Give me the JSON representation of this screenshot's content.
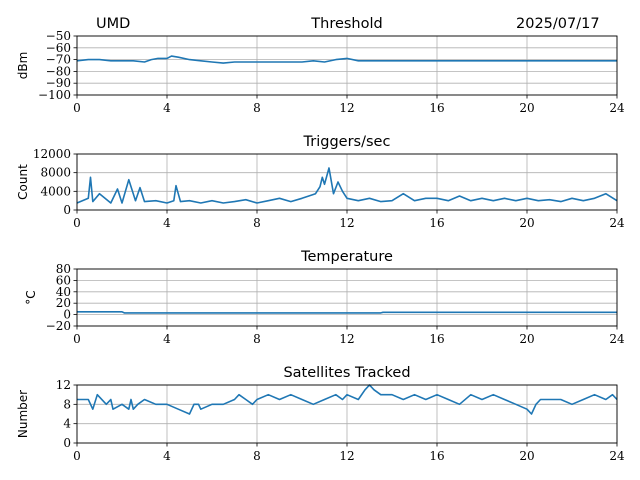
{
  "header": {
    "station": "UMD",
    "date": "2025/07/17"
  },
  "colors": {
    "line": "#1f77b4",
    "grid": "#b0b0b0"
  },
  "chart_data": [
    {
      "type": "line",
      "title": "Threshold",
      "xlabel": "",
      "ylabel": "dBm",
      "xlim": [
        0,
        24
      ],
      "ylim": [
        -100,
        -50
      ],
      "xticks": [
        "0",
        "4",
        "8",
        "12",
        "16",
        "20",
        "24"
      ],
      "yticks": [
        "−100",
        "−90",
        "−80",
        "−70",
        "−60",
        "−50"
      ],
      "grid": true,
      "series": [
        {
          "x": [
            0,
            0.5,
            1,
            1.5,
            2,
            2.5,
            3,
            3.3,
            3.6,
            4,
            4.2,
            4.5,
            5,
            5.5,
            6,
            6.5,
            7,
            7.5,
            8,
            9,
            10,
            10.5,
            11,
            11.5,
            12,
            12.5,
            13,
            14,
            16,
            18,
            20,
            22,
            24
          ],
          "y": [
            -71,
            -70,
            -70,
            -71,
            -71,
            -71,
            -72,
            -70,
            -69,
            -69,
            -67,
            -68,
            -70,
            -71,
            -72,
            -73,
            -72,
            -72,
            -72,
            -72,
            -72,
            -71,
            -72,
            -70,
            -69,
            -71,
            -71,
            -71,
            -71,
            -71,
            -71,
            -71,
            -71
          ]
        }
      ]
    },
    {
      "type": "line",
      "title": "Triggers/sec",
      "xlabel": "",
      "ylabel": "Count",
      "xlim": [
        0,
        24
      ],
      "ylim": [
        0,
        12000
      ],
      "xticks": [
        "0",
        "4",
        "8",
        "12",
        "16",
        "20",
        "24"
      ],
      "yticks": [
        "0",
        "4000",
        "8000",
        "12000"
      ],
      "grid": true,
      "series": [
        {
          "x": [
            0,
            0.5,
            0.6,
            0.7,
            1,
            1.5,
            1.8,
            2,
            2.3,
            2.6,
            2.8,
            3,
            3.5,
            4,
            4.3,
            4.4,
            4.6,
            5,
            5.5,
            6,
            6.5,
            7,
            7.5,
            8,
            8.5,
            9,
            9.5,
            10,
            10.3,
            10.6,
            10.8,
            10.9,
            11,
            11.2,
            11.4,
            11.6,
            11.8,
            12,
            12.5,
            13,
            13.5,
            14,
            14.5,
            15,
            15.5,
            16,
            16.5,
            17,
            17.5,
            18,
            18.5,
            19,
            19.5,
            20,
            20.5,
            21,
            21.5,
            22,
            22.5,
            23,
            23.5,
            24
          ],
          "y": [
            1500,
            2500,
            7000,
            1800,
            3500,
            1500,
            4500,
            1500,
            6500,
            2000,
            4800,
            1800,
            2000,
            1500,
            2000,
            5200,
            1800,
            2000,
            1500,
            2000,
            1500,
            1800,
            2200,
            1500,
            2000,
            2500,
            1800,
            2500,
            3000,
            3500,
            5000,
            7000,
            5500,
            9000,
            3500,
            6000,
            4000,
            2500,
            2000,
            2500,
            1800,
            2000,
            3500,
            2000,
            2500,
            2500,
            2000,
            3000,
            2000,
            2500,
            2000,
            2500,
            2000,
            2500,
            2000,
            2200,
            1800,
            2500,
            2000,
            2500,
            3500,
            2000
          ]
        }
      ]
    },
    {
      "type": "line",
      "title": "Temperature",
      "xlabel": "",
      "ylabel": "°C",
      "xlim": [
        0,
        24
      ],
      "ylim": [
        -20,
        80
      ],
      "xticks": [
        "0",
        "4",
        "8",
        "12",
        "16",
        "20",
        "24"
      ],
      "yticks": [
        "−20",
        "0",
        "20",
        "40",
        "60",
        "80"
      ],
      "grid": true,
      "series": [
        {
          "x": [
            0,
            2,
            2.1,
            13.5,
            13.6,
            24
          ],
          "y": [
            5,
            5,
            3,
            3,
            4,
            4
          ]
        }
      ]
    },
    {
      "type": "line",
      "title": "Satellites Tracked",
      "xlabel": "",
      "ylabel": "Number",
      "xlim": [
        0,
        24
      ],
      "ylim": [
        0,
        12
      ],
      "xticks": [
        "0",
        "4",
        "8",
        "12",
        "16",
        "20",
        "24"
      ],
      "yticks": [
        "0",
        "4",
        "8",
        "12"
      ],
      "grid": true,
      "series": [
        {
          "x": [
            0,
            0.5,
            0.7,
            0.9,
            1.3,
            1.5,
            1.6,
            2,
            2.3,
            2.4,
            2.5,
            2.7,
            3,
            3.5,
            3.8,
            4,
            4.5,
            5,
            5.2,
            5.4,
            5.5,
            6,
            6.5,
            7,
            7.2,
            7.5,
            7.8,
            8,
            8.5,
            9,
            9.5,
            10,
            10.5,
            11,
            11.5,
            11.8,
            12,
            12.5,
            12.8,
            13,
            13.2,
            13.5,
            14,
            14.5,
            15,
            15.5,
            16,
            16.5,
            17,
            17.5,
            18,
            18.5,
            19,
            19.5,
            20,
            20.2,
            20.4,
            20.6,
            21,
            21.5,
            22,
            22.5,
            23,
            23.5,
            23.8,
            24
          ],
          "y": [
            9,
            9,
            7,
            10,
            8,
            9,
            7,
            8,
            7,
            9,
            7,
            8,
            9,
            8,
            8,
            8,
            7,
            6,
            8,
            8,
            7,
            8,
            8,
            9,
            10,
            9,
            8,
            9,
            10,
            9,
            10,
            9,
            8,
            9,
            10,
            9,
            10,
            9,
            11,
            12,
            11,
            10,
            10,
            9,
            10,
            9,
            10,
            9,
            8,
            10,
            9,
            10,
            9,
            8,
            7,
            6,
            8,
            9,
            9,
            9,
            8,
            9,
            10,
            9,
            10,
            9
          ]
        }
      ]
    }
  ]
}
